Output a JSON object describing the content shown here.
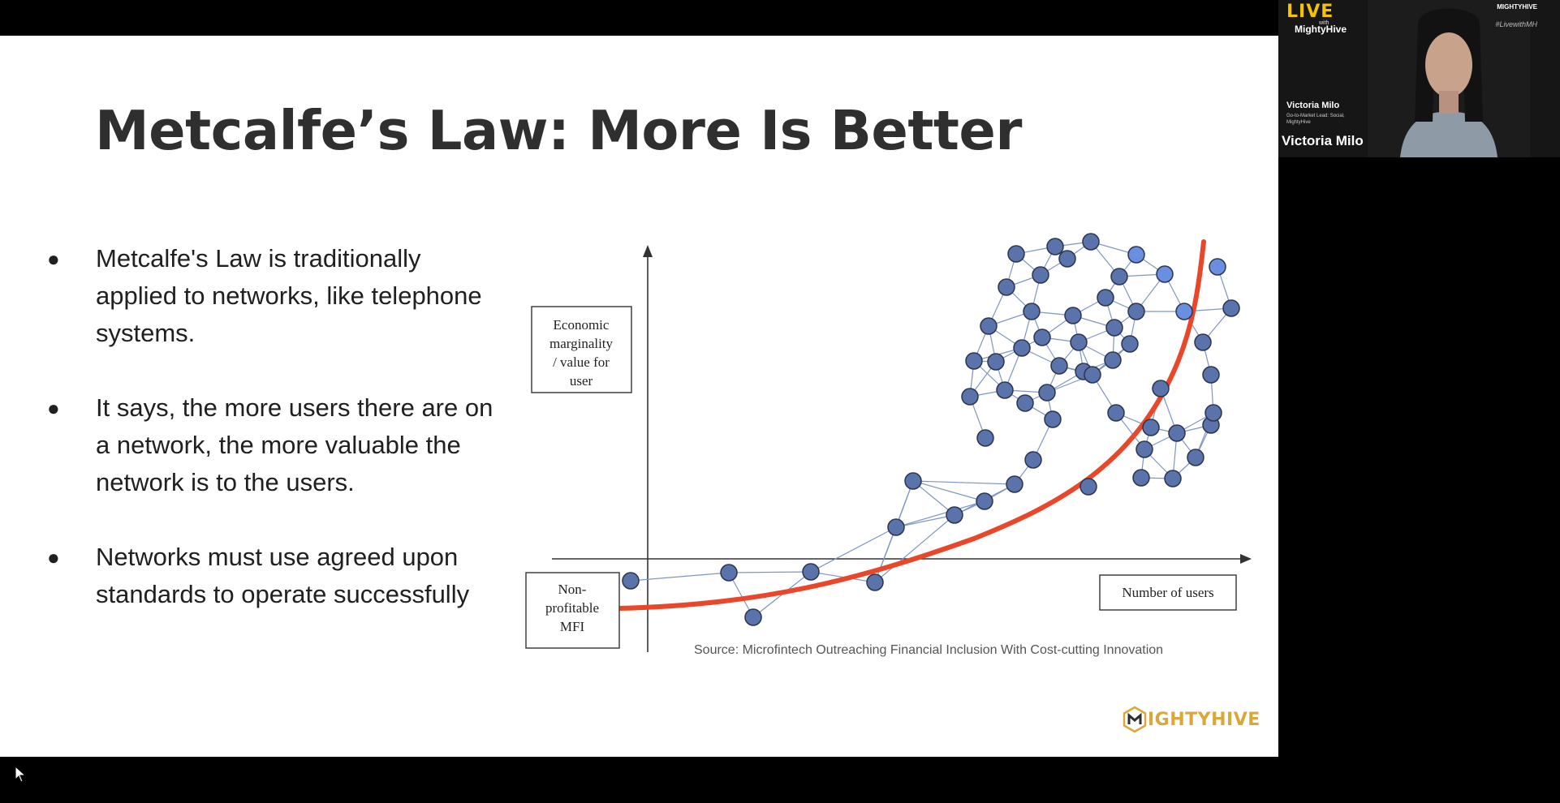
{
  "slide": {
    "title": "Metcalfe’s Law: More Is Better",
    "bullets": [
      "Metcalfe's Law is traditionally applied to networks, like telephone systems.",
      "It says, the more users there are on a network, the more valuable the network is to the users.",
      "Networks must use agreed upon standards to operate successfully"
    ],
    "bullet_symbol": "●",
    "diagram": {
      "y_axis_box": [
        "Economic",
        "marginality",
        "/ value for",
        "user"
      ],
      "origin_box": [
        "Non-",
        "profitable",
        "MFI"
      ],
      "x_axis_box": "Number of users"
    },
    "source": "Source: Microfintech Outreaching Financial Inclusion With Cost-cutting Innovation",
    "footer_logo": {
      "icon": "mightyhive-hexagon-icon",
      "text": "IGHTYHIVE"
    },
    "colors": {
      "curve": "#e8472a",
      "node": "#5a73aa",
      "node_light": "#6b8fe0",
      "edge": "#7d96c2",
      "brand": "#d9a73a"
    }
  },
  "webcam": {
    "live_text": "LIVE",
    "with_text": "with",
    "show_name": "MightyHive",
    "corner_logo": "MIGHTYHIVE",
    "hashtag": "#LivewithMH",
    "lower_third_name": "Victoria Milo",
    "lower_third_role": "Go-to-Market Lead: Social, MightyHive",
    "name_tag": "Victoria Milo"
  }
}
